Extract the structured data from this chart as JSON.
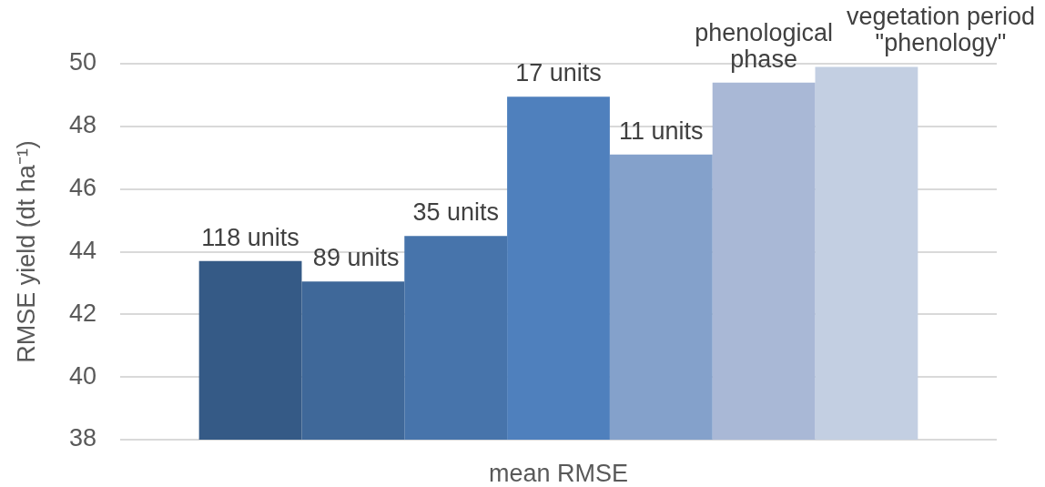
{
  "chart_data": {
    "type": "bar",
    "ylabel": "RMSE yield (dt ha⁻¹)",
    "categories": [
      "mean RMSE"
    ],
    "series": [
      {
        "name": "118 units",
        "color": "#355a86",
        "values": [
          43.7
        ]
      },
      {
        "name": "89 units",
        "color": "#3f6899",
        "values": [
          43.05
        ]
      },
      {
        "name": "35 units",
        "color": "#4774ab",
        "values": [
          44.5
        ]
      },
      {
        "name": "17 units",
        "color": "#4f80bd",
        "values": [
          48.95
        ]
      },
      {
        "name": "11 units",
        "color": "#84a1cb",
        "values": [
          47.1
        ]
      },
      {
        "name": "phenological phase",
        "color": "#a9b8d6",
        "values": [
          49.4
        ]
      },
      {
        "name": "vegetation period \"phenology\"",
        "color": "#c3cfe2",
        "values": [
          49.9
        ]
      }
    ],
    "ylim": [
      38,
      50
    ],
    "yticks": [
      38,
      40,
      42,
      44,
      46,
      48,
      50
    ],
    "grid": "y"
  }
}
